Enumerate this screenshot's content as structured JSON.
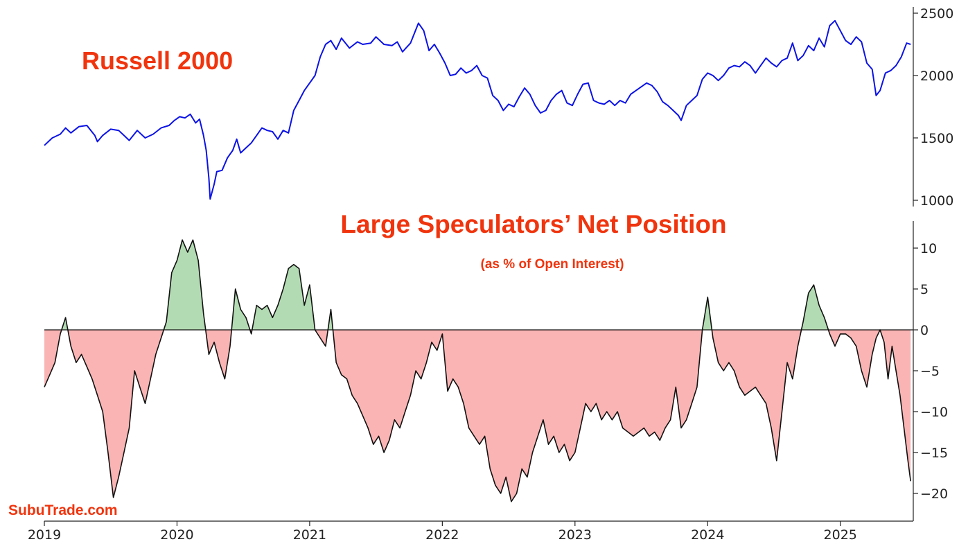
{
  "chart_data": [
    {
      "type": "line",
      "title": "Russell 2000",
      "ylim": [
        950,
        2530
      ],
      "yticks": [
        1000,
        1500,
        2000,
        2500
      ],
      "xlim": [
        2019.0,
        2025.55
      ],
      "colors": {
        "line": "#0b12e6",
        "title": "#f0340d"
      },
      "points": [
        [
          2019.0,
          1440
        ],
        [
          2019.06,
          1500
        ],
        [
          2019.12,
          1530
        ],
        [
          2019.16,
          1580
        ],
        [
          2019.2,
          1540
        ],
        [
          2019.26,
          1590
        ],
        [
          2019.32,
          1600
        ],
        [
          2019.38,
          1520
        ],
        [
          2019.4,
          1470
        ],
        [
          2019.44,
          1520
        ],
        [
          2019.5,
          1570
        ],
        [
          2019.56,
          1560
        ],
        [
          2019.6,
          1520
        ],
        [
          2019.64,
          1480
        ],
        [
          2019.7,
          1560
        ],
        [
          2019.76,
          1500
        ],
        [
          2019.82,
          1530
        ],
        [
          2019.88,
          1580
        ],
        [
          2019.94,
          1600
        ],
        [
          2019.98,
          1640
        ],
        [
          2020.02,
          1670
        ],
        [
          2020.06,
          1660
        ],
        [
          2020.1,
          1690
        ],
        [
          2020.14,
          1620
        ],
        [
          2020.17,
          1650
        ],
        [
          2020.2,
          1520
        ],
        [
          2020.22,
          1400
        ],
        [
          2020.24,
          1180
        ],
        [
          2020.25,
          1010
        ],
        [
          2020.28,
          1130
        ],
        [
          2020.3,
          1230
        ],
        [
          2020.34,
          1240
        ],
        [
          2020.38,
          1340
        ],
        [
          2020.42,
          1400
        ],
        [
          2020.45,
          1490
        ],
        [
          2020.48,
          1380
        ],
        [
          2020.52,
          1420
        ],
        [
          2020.56,
          1460
        ],
        [
          2020.6,
          1520
        ],
        [
          2020.64,
          1580
        ],
        [
          2020.68,
          1560
        ],
        [
          2020.72,
          1550
        ],
        [
          2020.76,
          1490
        ],
        [
          2020.8,
          1560
        ],
        [
          2020.84,
          1540
        ],
        [
          2020.88,
          1720
        ],
        [
          2020.92,
          1800
        ],
        [
          2020.96,
          1880
        ],
        [
          2021.0,
          1940
        ],
        [
          2021.04,
          2000
        ],
        [
          2021.08,
          2150
        ],
        [
          2021.12,
          2250
        ],
        [
          2021.16,
          2280
        ],
        [
          2021.2,
          2210
        ],
        [
          2021.24,
          2300
        ],
        [
          2021.3,
          2220
        ],
        [
          2021.36,
          2270
        ],
        [
          2021.4,
          2250
        ],
        [
          2021.46,
          2260
        ],
        [
          2021.5,
          2310
        ],
        [
          2021.56,
          2250
        ],
        [
          2021.62,
          2240
        ],
        [
          2021.66,
          2270
        ],
        [
          2021.7,
          2190
        ],
        [
          2021.76,
          2260
        ],
        [
          2021.82,
          2420
        ],
        [
          2021.86,
          2360
        ],
        [
          2021.9,
          2200
        ],
        [
          2021.94,
          2250
        ],
        [
          2021.98,
          2180
        ],
        [
          2022.02,
          2100
        ],
        [
          2022.06,
          2000
        ],
        [
          2022.1,
          2010
        ],
        [
          2022.14,
          2060
        ],
        [
          2022.18,
          2020
        ],
        [
          2022.22,
          2040
        ],
        [
          2022.26,
          2080
        ],
        [
          2022.3,
          2000
        ],
        [
          2022.34,
          1980
        ],
        [
          2022.38,
          1840
        ],
        [
          2022.42,
          1800
        ],
        [
          2022.46,
          1720
        ],
        [
          2022.5,
          1770
        ],
        [
          2022.54,
          1750
        ],
        [
          2022.58,
          1830
        ],
        [
          2022.62,
          1900
        ],
        [
          2022.66,
          1850
        ],
        [
          2022.7,
          1760
        ],
        [
          2022.74,
          1700
        ],
        [
          2022.78,
          1720
        ],
        [
          2022.82,
          1800
        ],
        [
          2022.86,
          1850
        ],
        [
          2022.9,
          1880
        ],
        [
          2022.94,
          1780
        ],
        [
          2022.98,
          1760
        ],
        [
          2023.02,
          1850
        ],
        [
          2023.06,
          1930
        ],
        [
          2023.1,
          1940
        ],
        [
          2023.14,
          1800
        ],
        [
          2023.18,
          1780
        ],
        [
          2023.22,
          1770
        ],
        [
          2023.26,
          1800
        ],
        [
          2023.3,
          1760
        ],
        [
          2023.34,
          1800
        ],
        [
          2023.38,
          1780
        ],
        [
          2023.42,
          1850
        ],
        [
          2023.46,
          1880
        ],
        [
          2023.5,
          1910
        ],
        [
          2023.54,
          1940
        ],
        [
          2023.58,
          1920
        ],
        [
          2023.62,
          1870
        ],
        [
          2023.66,
          1790
        ],
        [
          2023.7,
          1760
        ],
        [
          2023.74,
          1720
        ],
        [
          2023.78,
          1680
        ],
        [
          2023.8,
          1640
        ],
        [
          2023.84,
          1760
        ],
        [
          2023.88,
          1800
        ],
        [
          2023.92,
          1840
        ],
        [
          2023.96,
          1970
        ],
        [
          2024.0,
          2020
        ],
        [
          2024.04,
          2000
        ],
        [
          2024.08,
          1960
        ],
        [
          2024.12,
          2000
        ],
        [
          2024.16,
          2060
        ],
        [
          2024.2,
          2080
        ],
        [
          2024.24,
          2070
        ],
        [
          2024.28,
          2110
        ],
        [
          2024.32,
          2080
        ],
        [
          2024.36,
          2020
        ],
        [
          2024.4,
          2080
        ],
        [
          2024.44,
          2140
        ],
        [
          2024.48,
          2100
        ],
        [
          2024.52,
          2070
        ],
        [
          2024.56,
          2120
        ],
        [
          2024.6,
          2140
        ],
        [
          2024.64,
          2260
        ],
        [
          2024.68,
          2120
        ],
        [
          2024.72,
          2160
        ],
        [
          2024.76,
          2240
        ],
        [
          2024.8,
          2200
        ],
        [
          2024.84,
          2300
        ],
        [
          2024.88,
          2230
        ],
        [
          2024.92,
          2400
        ],
        [
          2024.96,
          2440
        ],
        [
          2025.0,
          2360
        ],
        [
          2025.04,
          2280
        ],
        [
          2025.08,
          2250
        ],
        [
          2025.12,
          2310
        ],
        [
          2025.16,
          2270
        ],
        [
          2025.2,
          2100
        ],
        [
          2025.24,
          2050
        ],
        [
          2025.27,
          1840
        ],
        [
          2025.3,
          1880
        ],
        [
          2025.34,
          2020
        ],
        [
          2025.38,
          2040
        ],
        [
          2025.42,
          2080
        ],
        [
          2025.46,
          2150
        ],
        [
          2025.5,
          2260
        ],
        [
          2025.53,
          2250
        ]
      ]
    },
    {
      "type": "area",
      "title": "Large Speculators’ Net Position",
      "subtitle": "(as % of Open Interest)",
      "ylim": [
        -23.5,
        13.5
      ],
      "yticks": [
        10,
        5,
        0,
        -5,
        -10,
        -15,
        -20
      ],
      "xlim": [
        2019.0,
        2025.55
      ],
      "colors": {
        "positive": "#b3dbb3",
        "negative": "#fab4b4",
        "line": "#111111",
        "zero": "#111111"
      },
      "points": [
        [
          2019.0,
          -7
        ],
        [
          2019.04,
          -5.5
        ],
        [
          2019.08,
          -4
        ],
        [
          2019.12,
          -0.5
        ],
        [
          2019.16,
          1.5
        ],
        [
          2019.2,
          -2
        ],
        [
          2019.24,
          -4
        ],
        [
          2019.28,
          -3
        ],
        [
          2019.32,
          -4.5
        ],
        [
          2019.36,
          -6
        ],
        [
          2019.4,
          -8
        ],
        [
          2019.44,
          -10
        ],
        [
          2019.48,
          -15
        ],
        [
          2019.52,
          -20.5
        ],
        [
          2019.56,
          -18
        ],
        [
          2019.6,
          -15
        ],
        [
          2019.64,
          -12
        ],
        [
          2019.68,
          -5
        ],
        [
          2019.72,
          -7
        ],
        [
          2019.76,
          -9
        ],
        [
          2019.8,
          -6
        ],
        [
          2019.84,
          -3
        ],
        [
          2019.88,
          -1
        ],
        [
          2019.92,
          1
        ],
        [
          2019.96,
          7
        ],
        [
          2020.0,
          8.5
        ],
        [
          2020.04,
          11
        ],
        [
          2020.08,
          9.5
        ],
        [
          2020.12,
          11
        ],
        [
          2020.16,
          8.5
        ],
        [
          2020.2,
          2
        ],
        [
          2020.24,
          -3
        ],
        [
          2020.28,
          -1.5
        ],
        [
          2020.32,
          -4
        ],
        [
          2020.36,
          -6
        ],
        [
          2020.4,
          -2
        ],
        [
          2020.44,
          5
        ],
        [
          2020.48,
          2.5
        ],
        [
          2020.52,
          1.5
        ],
        [
          2020.56,
          -0.5
        ],
        [
          2020.6,
          3
        ],
        [
          2020.64,
          2.5
        ],
        [
          2020.68,
          3
        ],
        [
          2020.72,
          1.5
        ],
        [
          2020.76,
          3
        ],
        [
          2020.8,
          5
        ],
        [
          2020.84,
          7.5
        ],
        [
          2020.88,
          8
        ],
        [
          2020.92,
          7.5
        ],
        [
          2020.96,
          3
        ],
        [
          2021.0,
          5.5
        ],
        [
          2021.04,
          0
        ],
        [
          2021.08,
          -1
        ],
        [
          2021.12,
          -2
        ],
        [
          2021.16,
          2.5
        ],
        [
          2021.2,
          -4
        ],
        [
          2021.24,
          -5.5
        ],
        [
          2021.28,
          -6
        ],
        [
          2021.32,
          -8
        ],
        [
          2021.36,
          -9
        ],
        [
          2021.4,
          -10.5
        ],
        [
          2021.44,
          -12
        ],
        [
          2021.48,
          -14
        ],
        [
          2021.52,
          -13
        ],
        [
          2021.56,
          -15
        ],
        [
          2021.6,
          -13.5
        ],
        [
          2021.64,
          -11
        ],
        [
          2021.68,
          -12
        ],
        [
          2021.72,
          -10
        ],
        [
          2021.76,
          -8
        ],
        [
          2021.8,
          -5
        ],
        [
          2021.84,
          -6
        ],
        [
          2021.88,
          -4
        ],
        [
          2021.92,
          -1.5
        ],
        [
          2021.96,
          -2.5
        ],
        [
          2022.0,
          -0.5
        ],
        [
          2022.04,
          -7.5
        ],
        [
          2022.08,
          -6
        ],
        [
          2022.12,
          -7
        ],
        [
          2022.16,
          -9
        ],
        [
          2022.2,
          -12
        ],
        [
          2022.24,
          -13
        ],
        [
          2022.28,
          -14
        ],
        [
          2022.32,
          -13
        ],
        [
          2022.36,
          -17
        ],
        [
          2022.4,
          -19
        ],
        [
          2022.44,
          -20
        ],
        [
          2022.48,
          -18
        ],
        [
          2022.52,
          -21
        ],
        [
          2022.56,
          -20
        ],
        [
          2022.6,
          -17
        ],
        [
          2022.64,
          -18
        ],
        [
          2022.68,
          -15
        ],
        [
          2022.72,
          -13
        ],
        [
          2022.76,
          -11
        ],
        [
          2022.8,
          -14
        ],
        [
          2022.84,
          -13
        ],
        [
          2022.88,
          -15
        ],
        [
          2022.92,
          -14
        ],
        [
          2022.96,
          -16
        ],
        [
          2023.0,
          -15
        ],
        [
          2023.04,
          -12
        ],
        [
          2023.08,
          -9
        ],
        [
          2023.12,
          -10
        ],
        [
          2023.16,
          -9
        ],
        [
          2023.2,
          -11
        ],
        [
          2023.24,
          -10
        ],
        [
          2023.28,
          -11
        ],
        [
          2023.32,
          -10
        ],
        [
          2023.36,
          -12
        ],
        [
          2023.4,
          -12.5
        ],
        [
          2023.44,
          -13
        ],
        [
          2023.48,
          -12.5
        ],
        [
          2023.52,
          -12
        ],
        [
          2023.56,
          -13
        ],
        [
          2023.6,
          -12.5
        ],
        [
          2023.64,
          -13.5
        ],
        [
          2023.68,
          -12
        ],
        [
          2023.72,
          -11
        ],
        [
          2023.76,
          -7
        ],
        [
          2023.8,
          -12
        ],
        [
          2023.84,
          -11
        ],
        [
          2023.88,
          -9
        ],
        [
          2023.92,
          -7
        ],
        [
          2023.96,
          0
        ],
        [
          2024.0,
          4
        ],
        [
          2024.04,
          -1
        ],
        [
          2024.08,
          -4
        ],
        [
          2024.12,
          -5
        ],
        [
          2024.16,
          -4
        ],
        [
          2024.2,
          -5
        ],
        [
          2024.24,
          -7
        ],
        [
          2024.28,
          -8
        ],
        [
          2024.32,
          -7.5
        ],
        [
          2024.36,
          -7
        ],
        [
          2024.4,
          -8
        ],
        [
          2024.44,
          -9
        ],
        [
          2024.48,
          -12
        ],
        [
          2024.52,
          -16
        ],
        [
          2024.56,
          -10
        ],
        [
          2024.6,
          -4
        ],
        [
          2024.64,
          -6
        ],
        [
          2024.68,
          -2
        ],
        [
          2024.72,
          1
        ],
        [
          2024.76,
          4.5
        ],
        [
          2024.8,
          5.5
        ],
        [
          2024.84,
          3
        ],
        [
          2024.88,
          1.5
        ],
        [
          2024.92,
          -0.5
        ],
        [
          2024.96,
          -2
        ],
        [
          2025.0,
          -0.5
        ],
        [
          2025.04,
          -0.5
        ],
        [
          2025.08,
          -1
        ],
        [
          2025.12,
          -2
        ],
        [
          2025.16,
          -5
        ],
        [
          2025.2,
          -7
        ],
        [
          2025.24,
          -3
        ],
        [
          2025.27,
          -1
        ],
        [
          2025.3,
          0
        ],
        [
          2025.33,
          -1.5
        ],
        [
          2025.36,
          -6
        ],
        [
          2025.39,
          -2
        ],
        [
          2025.42,
          -5
        ],
        [
          2025.45,
          -8
        ],
        [
          2025.48,
          -12
        ],
        [
          2025.51,
          -16
        ],
        [
          2025.53,
          -18.5
        ]
      ]
    }
  ],
  "x_axis": {
    "labels": [
      "2019",
      "2020",
      "2021",
      "2022",
      "2023",
      "2024",
      "2025"
    ]
  },
  "labels": {
    "top_title": "Russell 2000",
    "bottom_title": "Large Speculators’ Net Position",
    "bottom_subtitle": "(as % of Open Interest)",
    "watermark": "SubuTrade.com"
  }
}
